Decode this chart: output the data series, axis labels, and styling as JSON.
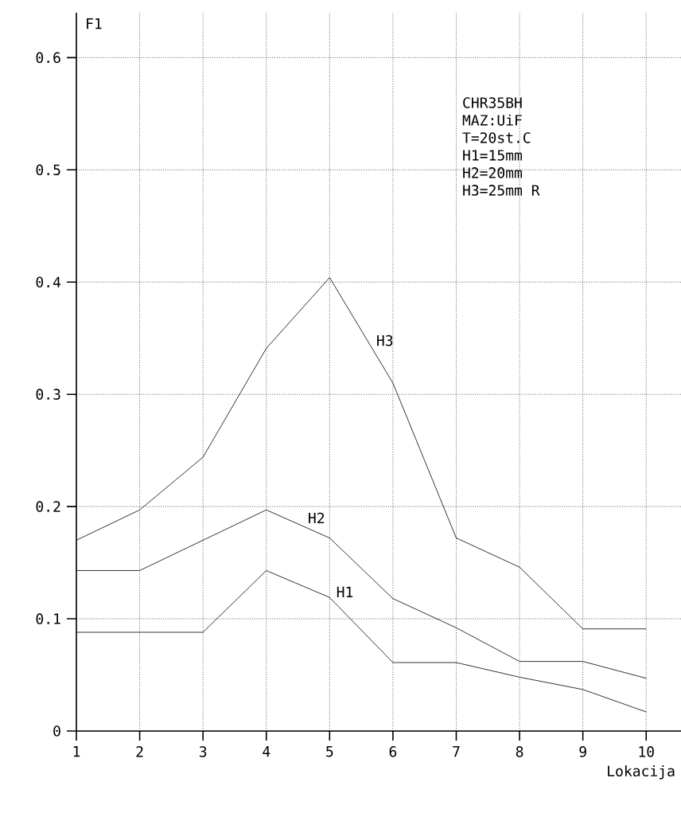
{
  "chart_data": {
    "type": "line",
    "xlabel": "Lokacija",
    "ylabel": "F1",
    "x": [
      1,
      2,
      3,
      4,
      5,
      6,
      7,
      8,
      9,
      10
    ],
    "series": [
      {
        "name": "H1",
        "color": "#000000",
        "values": [
          0.088,
          0.088,
          0.088,
          0.143,
          0.119,
          0.061,
          0.061,
          0.048,
          0.037,
          0.017
        ]
      },
      {
        "name": "H2",
        "color": "#000000",
        "values": [
          0.143,
          0.143,
          0.17,
          0.197,
          0.172,
          0.118,
          0.092,
          0.062,
          0.062,
          0.047
        ]
      },
      {
        "name": "H3",
        "color": "#000000",
        "values": [
          0.17,
          0.197,
          0.244,
          0.341,
          0.404,
          0.31,
          0.172,
          0.146,
          0.091,
          0.091
        ]
      }
    ],
    "annotations": [
      "CHR35BH",
      "MAZ:UiF",
      "T=20st.C",
      "H1=15mm",
      "H2=20mm",
      "H3=25mm R"
    ],
    "xlim": [
      1,
      10.55
    ],
    "ylim": [
      0,
      0.64
    ],
    "xticks": [
      1,
      2,
      3,
      4,
      5,
      6,
      7,
      8,
      9,
      10
    ],
    "yticks": [
      0,
      0.1,
      0.2,
      0.3,
      0.4,
      0.5,
      0.6
    ],
    "grid": true,
    "legend": false,
    "marker": "none",
    "line_style": "solid"
  }
}
